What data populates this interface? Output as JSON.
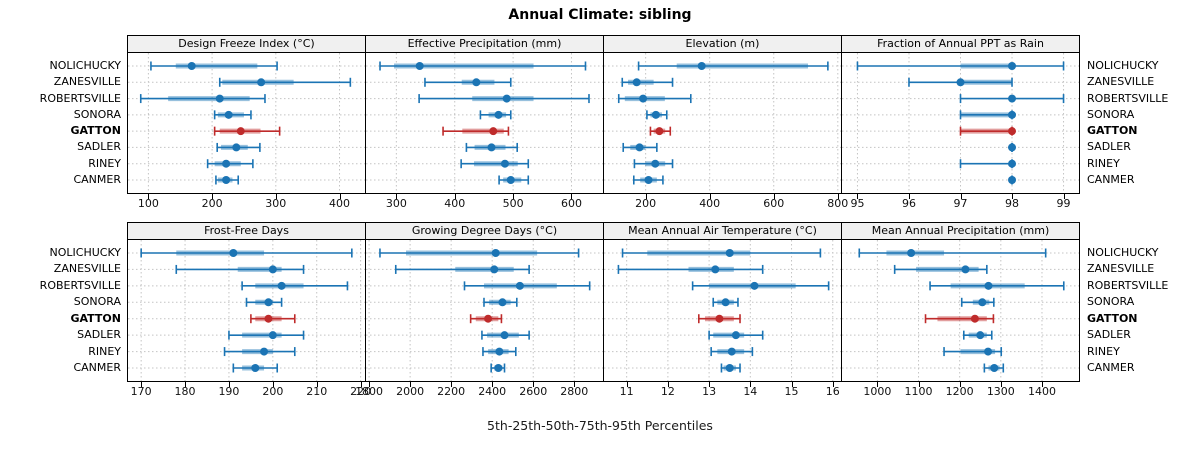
{
  "title": "Annual Climate: sibling",
  "caption": "5th-25th-50th-75th-95th Percentiles",
  "percentile_labels": [
    "5th",
    "25th",
    "50th",
    "75th",
    "95th"
  ],
  "categories": [
    "NOLICHUCKY",
    "ZANESVILLE",
    "ROBERTSVILLE",
    "SONORA",
    "GATTON",
    "SADLER",
    "RINEY",
    "CANMER"
  ],
  "highlight_category": "GATTON",
  "colors": {
    "series_blue": "#1b74b4",
    "series_red": "#bf2b2b",
    "grid": "#c4c4c4",
    "header_bg": "#f0f0f0",
    "panel_border": "#000000",
    "text": "#000000"
  },
  "chart_data": [
    {
      "type": "dot-interval",
      "title": "Design Freeze Index (°C)",
      "xlim": [
        68,
        440
      ],
      "xticks": [
        100,
        200,
        300,
        400
      ],
      "rows": [
        [
          104,
          143,
          168,
          271,
          302
        ],
        [
          212,
          216,
          277,
          328,
          417
        ],
        [
          88,
          131,
          212,
          259,
          283
        ],
        [
          204,
          209,
          226,
          250,
          261
        ],
        [
          204,
          212,
          245,
          276,
          306
        ],
        [
          208,
          214,
          238,
          256,
          275
        ],
        [
          193,
          204,
          222,
          245,
          264
        ],
        [
          206,
          209,
          222,
          232,
          241
        ]
      ]
    },
    {
      "type": "dot-interval",
      "title": "Effective Precipitation (mm)",
      "xlim": [
        248,
        654
      ],
      "xticks": [
        300,
        400,
        500,
        600
      ],
      "rows": [
        [
          272,
          296,
          340,
          535,
          624
        ],
        [
          349,
          412,
          437,
          468,
          496
        ],
        [
          339,
          430,
          489,
          535,
          630
        ],
        [
          444,
          458,
          475,
          488,
          496
        ],
        [
          380,
          413,
          466,
          484,
          492
        ],
        [
          420,
          434,
          463,
          487,
          507
        ],
        [
          411,
          433,
          486,
          508,
          526
        ],
        [
          476,
          483,
          496,
          514,
          526
        ]
      ]
    },
    {
      "type": "dot-interval",
      "title": "Elevation (m)",
      "xlim": [
        70,
        810
      ],
      "xticks": [
        200,
        400,
        600,
        800
      ],
      "rows": [
        [
          178,
          297,
          375,
          707,
          769
        ],
        [
          127,
          145,
          172,
          225,
          284
        ],
        [
          116,
          135,
          192,
          260,
          341
        ],
        [
          204,
          215,
          232,
          251,
          266
        ],
        [
          215,
          225,
          243,
          261,
          277
        ],
        [
          130,
          152,
          181,
          199,
          235
        ],
        [
          165,
          199,
          230,
          261,
          284
        ],
        [
          163,
          183,
          209,
          235,
          254
        ]
      ]
    },
    {
      "type": "dot-interval",
      "title": "Fraction of Annual PPT as Rain",
      "xlim": [
        94.7,
        99.3
      ],
      "xticks": [
        95,
        96,
        97,
        98,
        99
      ],
      "rows": [
        [
          95,
          97,
          98,
          98,
          99
        ],
        [
          96,
          97,
          97,
          98,
          98
        ],
        [
          97,
          98,
          98,
          98,
          99
        ],
        [
          97,
          97,
          98,
          98,
          98
        ],
        [
          97,
          97,
          98,
          98,
          98
        ],
        [
          98,
          98,
          98,
          98,
          98
        ],
        [
          97,
          98,
          98,
          98,
          98
        ],
        [
          98,
          98,
          98,
          98,
          98
        ]
      ]
    },
    {
      "type": "dot-interval",
      "title": "Frost-Free Days",
      "xlim": [
        167,
        221
      ],
      "xticks": [
        170,
        180,
        190,
        200,
        210,
        220
      ],
      "rows": [
        [
          170,
          178,
          191,
          198,
          218
        ],
        [
          178,
          192,
          200,
          202,
          207
        ],
        [
          193,
          196,
          202,
          207,
          217
        ],
        [
          194,
          196,
          199,
          200,
          202
        ],
        [
          195,
          196,
          199,
          202,
          205
        ],
        [
          190,
          193,
          200,
          202,
          207
        ],
        [
          189,
          193,
          198,
          200,
          205
        ],
        [
          191,
          193,
          196,
          198,
          201
        ]
      ]
    },
    {
      "type": "dot-interval",
      "title": "Growing Degree Days (°C)",
      "xlim": [
        1785,
        2940
      ],
      "xticks": [
        1800,
        2000,
        2200,
        2400,
        2600,
        2800
      ],
      "rows": [
        [
          1853,
          1980,
          2417,
          2619,
          2821
        ],
        [
          1930,
          2220,
          2410,
          2505,
          2580
        ],
        [
          2265,
          2360,
          2535,
          2715,
          2875
        ],
        [
          2360,
          2385,
          2450,
          2490,
          2520
        ],
        [
          2295,
          2320,
          2380,
          2430,
          2445
        ],
        [
          2350,
          2375,
          2460,
          2530,
          2580
        ],
        [
          2355,
          2380,
          2435,
          2480,
          2515
        ],
        [
          2395,
          2410,
          2430,
          2450,
          2460
        ]
      ]
    },
    {
      "type": "dot-interval",
      "title": "Mean Annual Air Temperature (°C)",
      "xlim": [
        10.45,
        16.2
      ],
      "xticks": [
        11,
        12,
        13,
        14,
        15,
        16
      ],
      "rows": [
        [
          10.9,
          11.5,
          13.5,
          14.0,
          15.7
        ],
        [
          10.8,
          12.5,
          13.15,
          13.6,
          14.3
        ],
        [
          12.6,
          13.0,
          14.1,
          15.1,
          15.9
        ],
        [
          13.1,
          13.2,
          13.4,
          13.6,
          13.7
        ],
        [
          12.75,
          12.9,
          13.25,
          13.6,
          13.75
        ],
        [
          13.0,
          13.1,
          13.65,
          13.85,
          14.3
        ],
        [
          13.05,
          13.2,
          13.55,
          13.85,
          14.05
        ],
        [
          13.3,
          13.35,
          13.5,
          13.65,
          13.75
        ]
      ]
    },
    {
      "type": "dot-interval",
      "title": "Mean Annual Precipitation (mm)",
      "xlim": [
        914,
        1490
      ],
      "xticks": [
        1000,
        1100,
        1200,
        1300,
        1400
      ],
      "rows": [
        [
          956,
          1022,
          1082,
          1162,
          1409
        ],
        [
          1042,
          1094,
          1214,
          1246,
          1266
        ],
        [
          1128,
          1178,
          1270,
          1358,
          1453
        ],
        [
          1205,
          1232,
          1255,
          1272,
          1283
        ],
        [
          1117,
          1146,
          1237,
          1266,
          1282
        ],
        [
          1210,
          1222,
          1250,
          1266,
          1278
        ],
        [
          1162,
          1202,
          1269,
          1286,
          1301
        ],
        [
          1260,
          1270,
          1284,
          1297,
          1306
        ]
      ]
    }
  ]
}
